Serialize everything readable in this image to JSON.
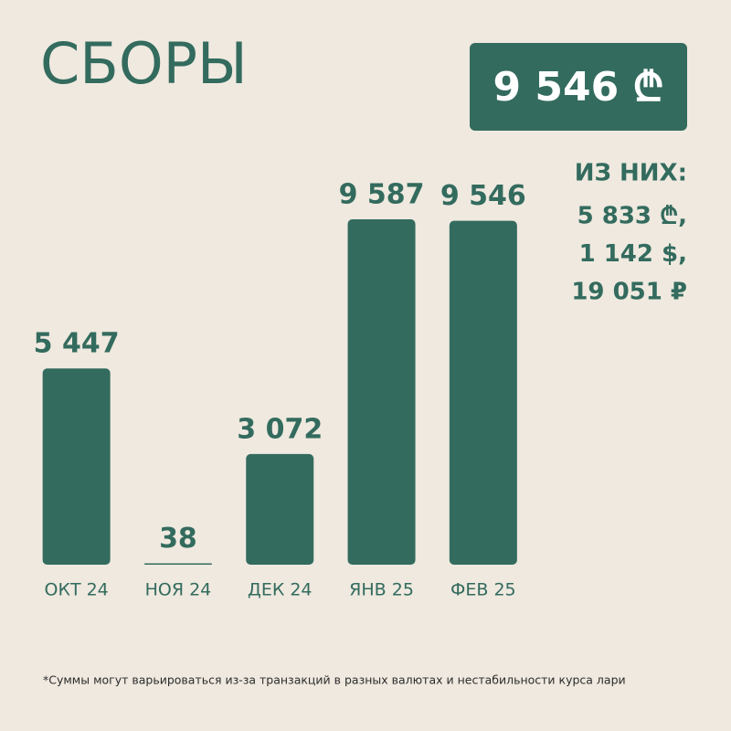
{
  "chart_data": {
    "type": "bar",
    "title": "СБОРЫ",
    "total": "9 546 ₾",
    "breakdown_title": "ИЗ НИХ:",
    "breakdown": [
      "5 833 ₾,",
      "1 142 $,",
      "19 051 ₽"
    ],
    "categories": [
      "ОКТ 24",
      "НОЯ 24",
      "ДЕК 24",
      "ЯНВ 25",
      "ФЕВ 25"
    ],
    "values": [
      5447,
      38,
      3072,
      9587,
      9546
    ],
    "value_labels": [
      "5 447",
      "38",
      "3 072",
      "9 587",
      "9 546"
    ],
    "color": "#336b5e",
    "footnote": "*Суммы могут варьироваться из-за транзакций в разных валютах и нестабильности курса лари"
  }
}
